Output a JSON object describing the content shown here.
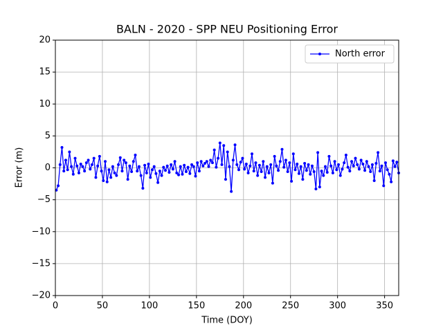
{
  "chart_data": {
    "type": "line",
    "title": "BALN - 2020 - SPP NEU Positioning Error",
    "xlabel": "Time (DOY)",
    "ylabel": "Error (m)",
    "x": [
      1,
      3,
      5,
      7,
      9,
      11,
      13,
      15,
      17,
      19,
      21,
      23,
      25,
      27,
      29,
      31,
      33,
      35,
      37,
      39,
      41,
      43,
      45,
      47,
      49,
      51,
      53,
      55,
      57,
      59,
      61,
      63,
      65,
      67,
      69,
      71,
      73,
      75,
      77,
      79,
      81,
      83,
      85,
      87,
      89,
      91,
      93,
      95,
      97,
      99,
      101,
      103,
      105,
      107,
      109,
      111,
      113,
      115,
      117,
      119,
      121,
      123,
      125,
      127,
      129,
      131,
      133,
      135,
      137,
      139,
      141,
      143,
      145,
      147,
      149,
      151,
      153,
      155,
      157,
      159,
      161,
      163,
      165,
      167,
      169,
      171,
      173,
      175,
      177,
      179,
      181,
      183,
      185,
      187,
      189,
      191,
      193,
      195,
      197,
      199,
      201,
      203,
      205,
      207,
      209,
      211,
      213,
      215,
      217,
      219,
      221,
      223,
      225,
      227,
      229,
      231,
      233,
      235,
      237,
      239,
      241,
      243,
      245,
      247,
      249,
      251,
      253,
      255,
      257,
      259,
      261,
      263,
      265,
      267,
      269,
      271,
      273,
      275,
      277,
      279,
      281,
      283,
      285,
      287,
      289,
      291,
      293,
      295,
      297,
      299,
      301,
      303,
      305,
      307,
      309,
      311,
      313,
      315,
      317,
      319,
      321,
      323,
      325,
      327,
      329,
      331,
      333,
      335,
      337,
      339,
      341,
      343,
      345,
      347,
      349,
      351,
      353,
      355,
      357,
      359,
      361,
      363,
      365
    ],
    "series": [
      {
        "name": "North error",
        "color": "#0000ff",
        "values": [
          -3.5,
          -2.8,
          0.5,
          3.2,
          -0.5,
          1.2,
          -0.3,
          2.5,
          0.2,
          -1.0,
          1.5,
          0.3,
          -0.8,
          0.6,
          0.2,
          -0.5,
          0.8,
          1.2,
          -0.2,
          0.5,
          1.5,
          -1.5,
          0.3,
          1.8,
          -0.5,
          -2.0,
          1.0,
          -2.2,
          -0.3,
          -1.5,
          0.2,
          -0.8,
          -1.2,
          0.5,
          1.6,
          -0.5,
          1.2,
          0.8,
          -1.8,
          0.3,
          -0.6,
          1.0,
          2.0,
          -0.5,
          0.2,
          -1.2,
          -3.2,
          0.4,
          -0.8,
          0.6,
          -1.5,
          -0.3,
          0.2,
          -0.9,
          -2.3,
          -0.5,
          -1.2,
          0.1,
          -0.4,
          0.3,
          -0.7,
          0.5,
          -0.2,
          1.0,
          -0.8,
          -1.1,
          0.2,
          -1.0,
          0.4,
          -0.6,
          0.1,
          -0.9,
          0.5,
          0.2,
          -1.3,
          0.8,
          -0.5,
          1.0,
          0.3,
          0.7,
          1.0,
          0.2,
          1.2,
          0.8,
          2.8,
          0.1,
          1.5,
          3.9,
          0.5,
          3.5,
          -1.8,
          2.5,
          0.2,
          -3.7,
          1.2,
          3.6,
          0.5,
          -0.3,
          0.9,
          1.5,
          -0.2,
          0.6,
          -0.8,
          0.3,
          2.2,
          -0.5,
          0.8,
          -1.2,
          0.4,
          -0.6,
          1.0,
          -1.5,
          0.2,
          -0.8,
          0.5,
          -2.4,
          1.8,
          0.3,
          -0.4,
          1.0,
          2.9,
          0.1,
          1.2,
          -0.6,
          0.8,
          -2.1,
          2.2,
          -0.3,
          0.6,
          -0.9,
          0.2,
          -1.8,
          0.7,
          -0.4,
          0.5,
          -1.0,
          0.3,
          -0.6,
          -3.3,
          2.4,
          -3.0,
          -0.5,
          -1.2,
          0.2,
          -0.7,
          1.8,
          0.3,
          -0.8,
          1.0,
          -0.3,
          0.5,
          -1.2,
          -0.2,
          0.8,
          2.0,
          0.1,
          -0.5,
          1.0,
          0.3,
          1.5,
          0.5,
          -0.2,
          1.2,
          0.6,
          -0.4,
          1.0,
          0.2,
          -0.6,
          0.5,
          -2.0,
          0.7,
          2.4,
          -0.5,
          0.3,
          -2.8,
          0.8,
          -0.3,
          -1.0,
          -2.2,
          1.1,
          0.2,
          0.9,
          -0.8
        ]
      }
    ],
    "xlim": [
      0,
      365
    ],
    "xticks": [
      0,
      50,
      100,
      150,
      200,
      250,
      300,
      350
    ],
    "ylim": [
      -20,
      20
    ],
    "yticks": [
      {
        "value": -20,
        "label": "−20"
      },
      {
        "value": -15,
        "label": "−15"
      },
      {
        "value": -10,
        "label": "−10"
      },
      {
        "value": -5,
        "label": "−5"
      },
      0,
      5,
      10,
      15,
      20
    ],
    "grid": true,
    "legend": "upper right"
  }
}
